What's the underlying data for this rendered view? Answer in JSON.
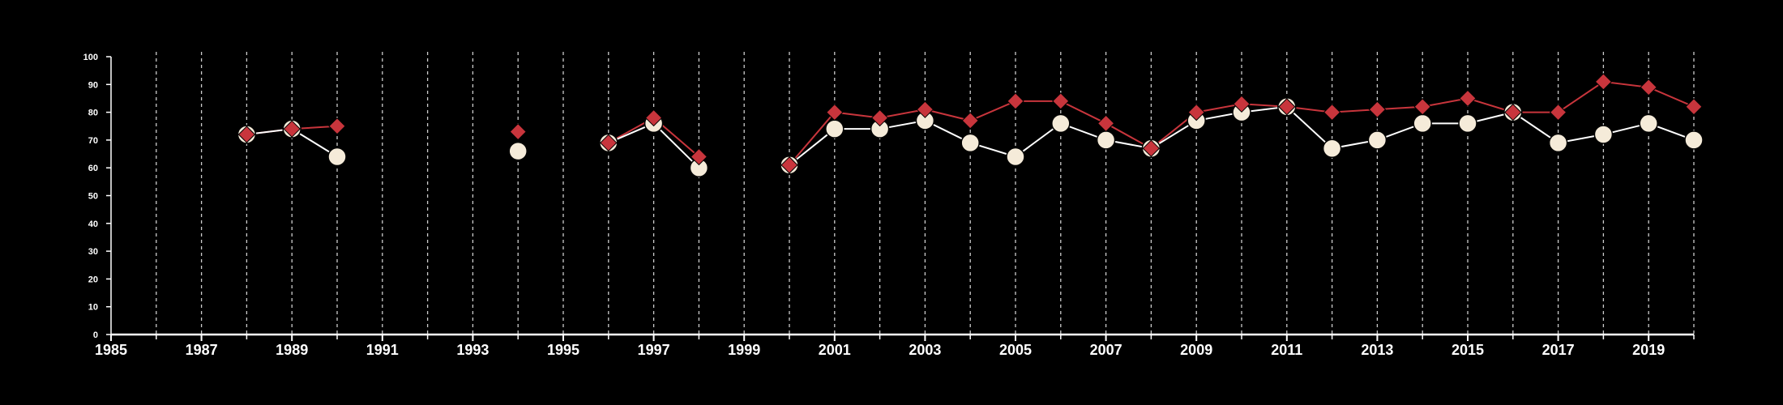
{
  "colors": {
    "background": "#000000",
    "axis": "#ffffff",
    "grid": "#cccccc",
    "series_white": "#f5ebd9",
    "series_white_line": "#ffffff",
    "series_red": "#c8353c"
  },
  "chart_data": {
    "type": "line",
    "title": "",
    "xlabel": "",
    "ylabel": "",
    "xlim": [
      1985,
      2020
    ],
    "ylim": [
      0,
      100
    ],
    "x_ticks": [
      1985,
      1987,
      1989,
      1991,
      1993,
      1995,
      1997,
      1999,
      2001,
      2003,
      2005,
      2007,
      2009,
      2011,
      2013,
      2015,
      2017,
      2019
    ],
    "y_ticks": [
      0,
      10,
      20,
      30,
      40,
      50,
      60,
      70,
      80,
      90,
      100
    ],
    "grid": "vertical dashed at every year",
    "legend": "none",
    "series": [
      {
        "marker": "circle",
        "color": "#f5ebd9",
        "points": [
          [
            1988,
            72
          ],
          [
            1989,
            74
          ],
          [
            1990,
            64
          ],
          [
            1994,
            66
          ],
          [
            1996,
            69
          ],
          [
            1997,
            76
          ],
          [
            1998,
            60
          ],
          [
            2000,
            61
          ],
          [
            2001,
            74
          ],
          [
            2002,
            74
          ],
          [
            2003,
            77
          ],
          [
            2004,
            69
          ],
          [
            2005,
            64
          ],
          [
            2006,
            76
          ],
          [
            2007,
            70
          ],
          [
            2008,
            67
          ],
          [
            2009,
            77
          ],
          [
            2010,
            80
          ],
          [
            2011,
            82
          ],
          [
            2012,
            67
          ],
          [
            2013,
            70
          ],
          [
            2014,
            76
          ],
          [
            2015,
            76
          ],
          [
            2016,
            80
          ],
          [
            2017,
            69
          ],
          [
            2018,
            72
          ],
          [
            2019,
            76
          ],
          [
            2020,
            70
          ]
        ]
      },
      {
        "marker": "diamond",
        "color": "#c8353c",
        "points": [
          [
            1988,
            72
          ],
          [
            1989,
            74
          ],
          [
            1990,
            75
          ],
          [
            1994,
            73
          ],
          [
            1996,
            69
          ],
          [
            1997,
            78
          ],
          [
            1998,
            64
          ],
          [
            2000,
            61
          ],
          [
            2001,
            80
          ],
          [
            2002,
            78
          ],
          [
            2003,
            81
          ],
          [
            2004,
            77
          ],
          [
            2005,
            84
          ],
          [
            2006,
            84
          ],
          [
            2007,
            76
          ],
          [
            2008,
            67
          ],
          [
            2009,
            80
          ],
          [
            2010,
            83
          ],
          [
            2011,
            82
          ],
          [
            2012,
            80
          ],
          [
            2013,
            81
          ],
          [
            2014,
            82
          ],
          [
            2015,
            85
          ],
          [
            2016,
            80
          ],
          [
            2017,
            80
          ],
          [
            2018,
            91
          ],
          [
            2019,
            89
          ],
          [
            2020,
            82
          ]
        ]
      }
    ]
  }
}
